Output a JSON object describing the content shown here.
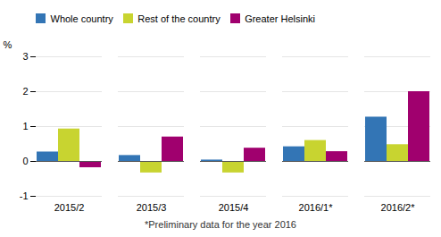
{
  "chart_data": {
    "type": "bar",
    "categories": [
      "2015/2",
      "2015/3",
      "2015/4",
      "2016/1*",
      "2016/2*"
    ],
    "series": [
      {
        "name": "Whole country",
        "color": "#3375b5",
        "values": [
          0.27,
          0.17,
          0.04,
          0.42,
          1.27
        ]
      },
      {
        "name": "Rest of the country",
        "color": "#c8d430",
        "values": [
          0.93,
          -0.33,
          -0.33,
          0.6,
          0.48
        ]
      },
      {
        "name": "Greater Helsinki",
        "color": "#a0006e",
        "values": [
          -0.18,
          0.7,
          0.38,
          0.28,
          2.0
        ]
      }
    ],
    "ylabel": "%",
    "ylim": [
      -1,
      3
    ],
    "yticks": [
      -1,
      0,
      1,
      2,
      3
    ],
    "grid": true,
    "legend": "top",
    "footnote": "*Preliminary data for the year 2016"
  }
}
